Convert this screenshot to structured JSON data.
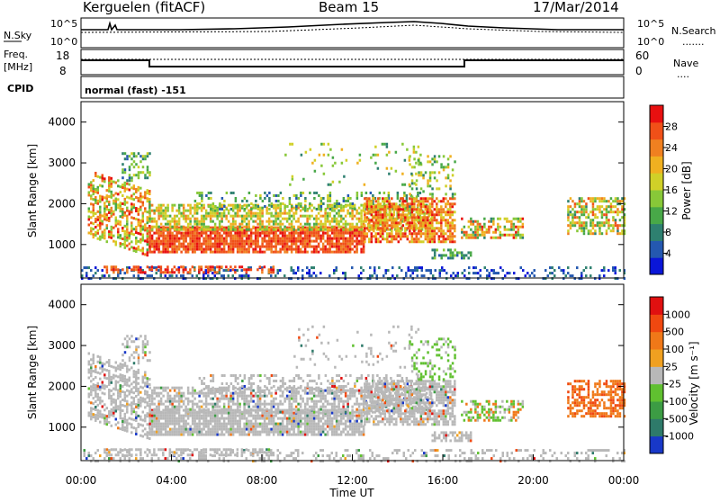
{
  "header": {
    "station": "Kerguelen (fitACF)",
    "beam": "Beam 15",
    "date": "17/Mar/2014"
  },
  "panels": {
    "nsky": {
      "left_label": "N.Sky",
      "left_ticks": [
        "10^5",
        "10^0"
      ],
      "right_ticks": [
        "10^5",
        "10^0"
      ],
      "right_label": "N.Search",
      "right_dots": "......."
    },
    "freq": {
      "left_label_1": "Freq.",
      "left_label_2": "[MHz]",
      "left_ticks": [
        "18",
        "8"
      ],
      "right_ticks": [
        "60",
        "0"
      ],
      "right_label": "Nave",
      "right_dots": "...."
    },
    "cpid": {
      "label": "CPID",
      "text": "normal (fast) -151"
    }
  },
  "chart_data": [
    {
      "type": "heatmap",
      "name": "power",
      "ylabel": "Slant Range [km]",
      "xlabel": "",
      "xlim": [
        "00:00",
        "24:00"
      ],
      "ylim": [
        180,
        4500
      ],
      "yticks": [
        "4000",
        "3000",
        "2000",
        "1000"
      ],
      "colorbar": {
        "label": "Power [dB]",
        "ticks": [
          "28",
          "24",
          "20",
          "16",
          "12",
          "8",
          "4"
        ],
        "colors": [
          "#0a16d8",
          "#2458b0",
          "#2e8070",
          "#48a848",
          "#88c838",
          "#d0d028",
          "#f0b020",
          "#f08020",
          "#f05018",
          "#e81010"
        ]
      }
    },
    {
      "type": "heatmap",
      "name": "velocity",
      "ylabel": "Slant Range [km]",
      "xlabel": "Time UT",
      "xlim": [
        "00:00",
        "24:00"
      ],
      "ylim": [
        180,
        4500
      ],
      "yticks": [
        "4000",
        "3000",
        "2000",
        "1000"
      ],
      "xticks": [
        "00:00",
        "04:00",
        "08:00",
        "12:00",
        "16:00",
        "20:00",
        "00:00"
      ],
      "colorbar": {
        "label": "Velocity [m s⁻¹]",
        "ticks": [
          "1000",
          "500",
          "100",
          "25",
          "-25",
          "-100",
          "-500",
          "-1000"
        ],
        "colors": [
          "#1838c8",
          "#2e7a6a",
          "#3c9c44",
          "#60c030",
          "#b8b8b8",
          "#f0a020",
          "#f07818",
          "#f04810",
          "#e01010"
        ]
      }
    }
  ]
}
